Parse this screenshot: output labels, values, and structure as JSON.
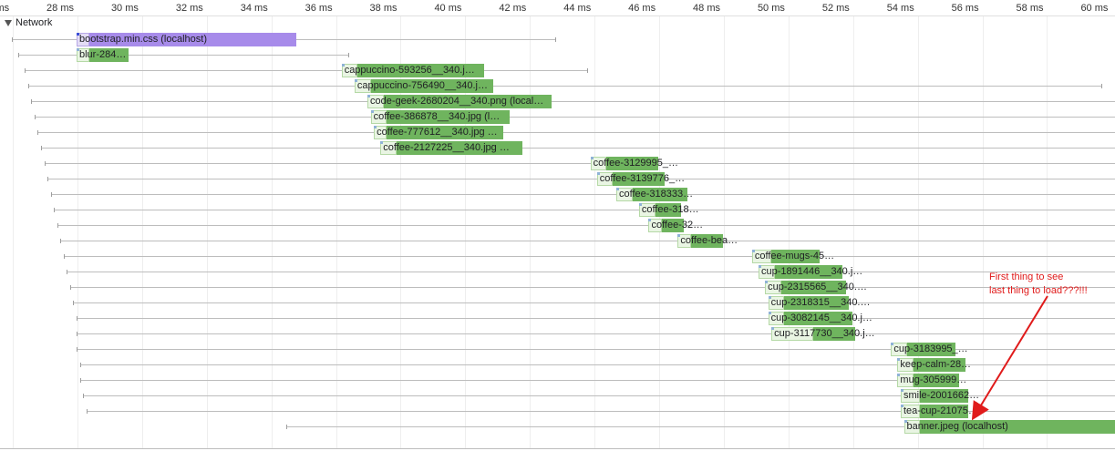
{
  "ruler": {
    "ticks": [
      "ms",
      "28 ms",
      "30 ms",
      "32 ms",
      "34 ms",
      "36 ms",
      "38 ms",
      "40 ms",
      "42 ms",
      "44 ms",
      "46 ms",
      "48 ms",
      "50 ms",
      "52 ms",
      "54 ms",
      "56 ms",
      "58 ms",
      "60 ms"
    ]
  },
  "track": {
    "title": "Network"
  },
  "requests": [
    {
      "label": "bootstrap.min.css (localhost)",
      "kind": "css",
      "start_ms": 28.0,
      "recv_ms": 28.4,
      "end_ms": 34.8,
      "wait_start_ms": 26.0,
      "wait_end_ms": 42.8
    },
    {
      "label": "blur-284…",
      "kind": "img",
      "start_ms": 28.0,
      "recv_ms": 28.4,
      "end_ms": 29.6,
      "wait_start_ms": 26.2,
      "wait_end_ms": 36.4
    },
    {
      "label": "cappuccino-593256__340.j…",
      "kind": "img",
      "start_ms": 36.2,
      "recv_ms": 36.7,
      "end_ms": 40.6,
      "wait_start_ms": 26.4,
      "wait_end_ms": 43.8
    },
    {
      "label": "cappuccino-756490__340.j…",
      "kind": "img",
      "start_ms": 36.6,
      "recv_ms": 37.1,
      "end_ms": 40.9,
      "wait_start_ms": 26.5,
      "wait_end_ms": 59.7
    },
    {
      "label": "code-geek-2680204__340.png (local…",
      "kind": "img",
      "start_ms": 37.0,
      "recv_ms": 37.5,
      "end_ms": 42.7,
      "wait_start_ms": 26.6,
      "wait_end_ms": 61.0
    },
    {
      "label": "coffee-386878__340.jpg (l…",
      "kind": "img",
      "start_ms": 37.1,
      "recv_ms": 37.6,
      "end_ms": 41.4,
      "wait_start_ms": 26.7,
      "wait_end_ms": 61.0
    },
    {
      "label": "coffee-777612__340.jpg …",
      "kind": "img",
      "start_ms": 37.2,
      "recv_ms": 37.6,
      "end_ms": 41.2,
      "wait_start_ms": 26.8,
      "wait_end_ms": 61.0
    },
    {
      "label": "coffee-2127225__340.jpg …",
      "kind": "img",
      "start_ms": 37.4,
      "recv_ms": 37.9,
      "end_ms": 41.8,
      "wait_start_ms": 26.9,
      "wait_end_ms": 61.0
    },
    {
      "label": "coffee-3129995_…",
      "kind": "img",
      "start_ms": 43.9,
      "recv_ms": 44.4,
      "end_ms": 46.0,
      "wait_start_ms": 27.0,
      "wait_end_ms": 61.0
    },
    {
      "label": "coffee-3139776_…",
      "kind": "img",
      "start_ms": 44.1,
      "recv_ms": 44.6,
      "end_ms": 46.2,
      "wait_start_ms": 27.1,
      "wait_end_ms": 61.0
    },
    {
      "label": "coffee-318333…",
      "kind": "img",
      "start_ms": 44.7,
      "recv_ms": 45.2,
      "end_ms": 46.9,
      "wait_start_ms": 27.2,
      "wait_end_ms": 61.0
    },
    {
      "label": "coffee-318…",
      "kind": "img",
      "start_ms": 45.4,
      "recv_ms": 45.9,
      "end_ms": 46.7,
      "wait_start_ms": 27.3,
      "wait_end_ms": 61.0
    },
    {
      "label": "coffee-32…",
      "kind": "img",
      "start_ms": 45.7,
      "recv_ms": 46.1,
      "end_ms": 46.8,
      "wait_start_ms": 27.4,
      "wait_end_ms": 61.0
    },
    {
      "label": "coffee-bea…",
      "kind": "img",
      "start_ms": 46.6,
      "recv_ms": 47.0,
      "end_ms": 48.0,
      "wait_start_ms": 27.5,
      "wait_end_ms": 61.0
    },
    {
      "label": "coffee-mugs-45…",
      "kind": "img",
      "start_ms": 48.9,
      "recv_ms": 49.5,
      "end_ms": 51.0,
      "wait_start_ms": 27.6,
      "wait_end_ms": 61.0
    },
    {
      "label": "cup-1891446__340.j…",
      "kind": "img",
      "start_ms": 49.1,
      "recv_ms": 49.6,
      "end_ms": 51.7,
      "wait_start_ms": 27.7,
      "wait_end_ms": 61.0
    },
    {
      "label": "cup-2315565__340.…",
      "kind": "img",
      "start_ms": 49.3,
      "recv_ms": 49.8,
      "end_ms": 51.8,
      "wait_start_ms": 27.8,
      "wait_end_ms": 61.0
    },
    {
      "label": "cup-2318315__340.…",
      "kind": "img",
      "start_ms": 49.4,
      "recv_ms": 49.9,
      "end_ms": 51.9,
      "wait_start_ms": 27.9,
      "wait_end_ms": 61.0
    },
    {
      "label": "cup-3082145__340.j…",
      "kind": "img",
      "start_ms": 49.4,
      "recv_ms": 49.9,
      "end_ms": 52.0,
      "wait_start_ms": 28.0,
      "wait_end_ms": 61.0
    },
    {
      "label": "cup-3117730__340.j…",
      "kind": "img",
      "start_ms": 49.5,
      "recv_ms": 50.8,
      "end_ms": 52.1,
      "wait_start_ms": 28.0,
      "wait_end_ms": 61.0
    },
    {
      "label": "cup-3183995_…",
      "kind": "img",
      "start_ms": 53.2,
      "recv_ms": 53.7,
      "end_ms": 55.2,
      "wait_start_ms": 28.0,
      "wait_end_ms": 61.0
    },
    {
      "label": "keep-calm-28…",
      "kind": "img",
      "start_ms": 53.4,
      "recv_ms": 53.9,
      "end_ms": 55.5,
      "wait_start_ms": 28.1,
      "wait_end_ms": 61.0
    },
    {
      "label": "mug-305999…",
      "kind": "img",
      "start_ms": 53.4,
      "recv_ms": 53.9,
      "end_ms": 55.3,
      "wait_start_ms": 28.1,
      "wait_end_ms": 61.0
    },
    {
      "label": "smile-2001662…",
      "kind": "img",
      "start_ms": 53.5,
      "recv_ms": 54.1,
      "end_ms": 55.6,
      "wait_start_ms": 28.2,
      "wait_end_ms": 61.0
    },
    {
      "label": "tea-cup-21075…",
      "kind": "img",
      "start_ms": 53.5,
      "recv_ms": 54.1,
      "end_ms": 55.6,
      "wait_start_ms": 28.3,
      "wait_end_ms": 61.0
    },
    {
      "label": "banner.jpeg (localhost)",
      "kind": "img",
      "start_ms": 53.6,
      "recv_ms": 54.1,
      "end_ms": 61.0,
      "wait_start_ms": 34.5,
      "wait_end_ms": 61.0
    }
  ],
  "annotation": {
    "line1": "First thing to see",
    "line2": "last thing to load???!!!",
    "color": "#e01b1b"
  }
}
